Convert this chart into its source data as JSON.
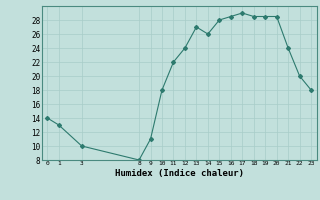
{
  "x": [
    0,
    1,
    3,
    8,
    9,
    10,
    11,
    12,
    13,
    14,
    15,
    16,
    17,
    18,
    19,
    20,
    21,
    22,
    23
  ],
  "y": [
    14,
    13,
    10,
    8,
    11,
    18,
    22,
    24,
    27,
    26,
    28,
    28.5,
    29,
    28.5,
    28.5,
    28.5,
    24,
    20,
    18
  ],
  "line_color": "#2d7a6e",
  "marker": "D",
  "marker_size": 2.0,
  "bg_color": "#c2e0dc",
  "grid_color": "#a8cdc8",
  "xlabel": "Humidex (Indice chaleur)",
  "ylim": [
    8,
    30
  ],
  "xlim": [
    -0.5,
    23.5
  ],
  "yticks": [
    8,
    10,
    12,
    14,
    16,
    18,
    20,
    22,
    24,
    26,
    28
  ],
  "xticks": [
    0,
    1,
    3,
    8,
    9,
    10,
    11,
    12,
    13,
    14,
    15,
    16,
    17,
    18,
    19,
    20,
    21,
    22,
    23
  ]
}
